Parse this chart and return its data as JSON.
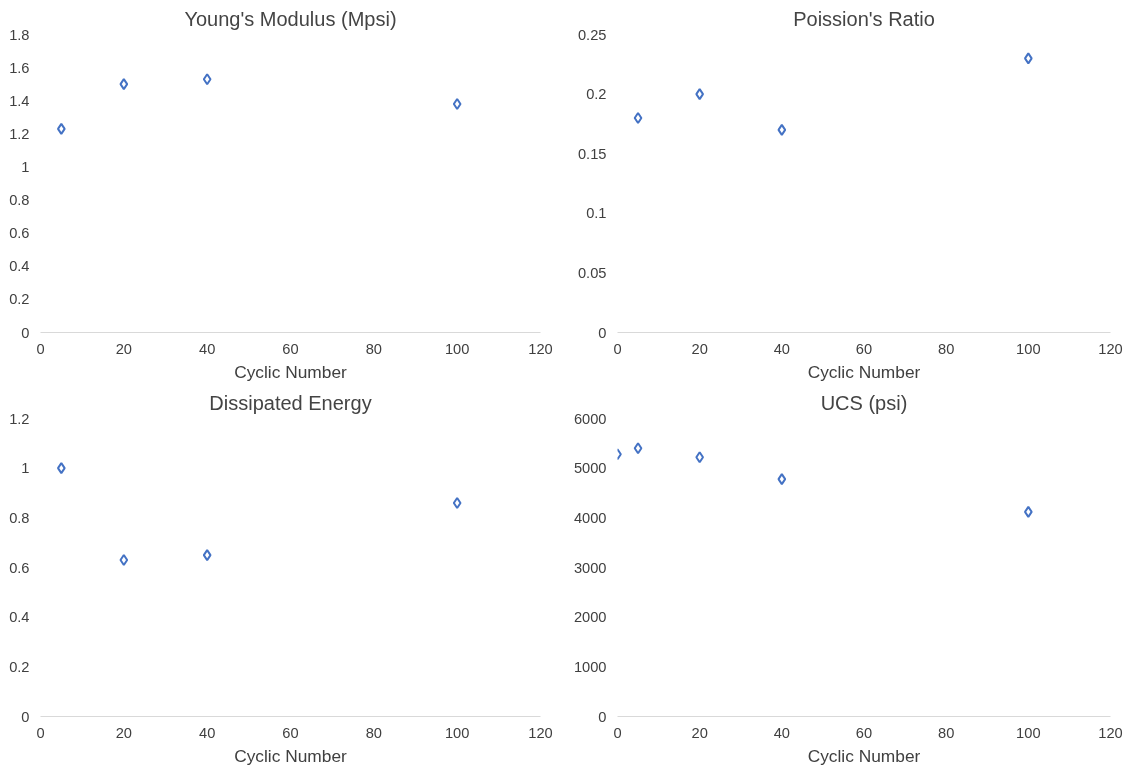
{
  "chart_data": [
    {
      "type": "scatter",
      "title": "Young's Modulus (Mpsi)",
      "xlabel": "Cyclic Number",
      "marker": "diamond",
      "grid": false,
      "series": [
        {
          "color": "#4472c4",
          "x": [
            5,
            20,
            40,
            100
          ],
          "values": [
            1.23,
            1.5,
            1.53,
            1.38
          ]
        }
      ],
      "xlim": [
        0,
        120
      ],
      "xticks": [
        0,
        20,
        40,
        60,
        80,
        100,
        120
      ],
      "ylim": [
        0,
        1.8
      ],
      "yticks": [
        0,
        0.2,
        0.4,
        0.6,
        0.8,
        1,
        1.2,
        1.4,
        1.6,
        1.8
      ]
    },
    {
      "type": "scatter",
      "title": "Poission's Ratio",
      "xlabel": "Cyclic Number",
      "marker": "diamond",
      "grid": false,
      "series": [
        {
          "color": "#4472c4",
          "x": [
            5,
            20,
            40,
            100
          ],
          "values": [
            0.18,
            0.2,
            0.17,
            0.23
          ]
        }
      ],
      "xlim": [
        0,
        120
      ],
      "xticks": [
        0,
        20,
        40,
        60,
        80,
        100,
        120
      ],
      "ylim": [
        0,
        0.25
      ],
      "yticks": [
        0,
        0.05,
        0.1,
        0.15,
        0.2,
        0.25
      ]
    },
    {
      "type": "scatter",
      "title": "Dissipated Energy",
      "xlabel": "Cyclic Number",
      "marker": "diamond",
      "grid": false,
      "series": [
        {
          "color": "#4472c4",
          "x": [
            5,
            20,
            40,
            100
          ],
          "values": [
            1.0,
            0.63,
            0.65,
            0.86
          ]
        }
      ],
      "xlim": [
        0,
        120
      ],
      "xticks": [
        0,
        20,
        40,
        60,
        80,
        100,
        120
      ],
      "ylim": [
        0,
        1.2
      ],
      "yticks": [
        0,
        0.2,
        0.4,
        0.6,
        0.8,
        1,
        1.2
      ]
    },
    {
      "type": "scatter",
      "title": "UCS (psi)",
      "xlabel": "Cyclic Number",
      "marker": "diamond",
      "grid": false,
      "series": [
        {
          "color": "#4472c4",
          "x": [
            0,
            5,
            20,
            40,
            100
          ],
          "values": [
            5280,
            5400,
            5220,
            4780,
            4120
          ]
        }
      ],
      "xlim": [
        0,
        120
      ],
      "xticks": [
        0,
        20,
        40,
        60,
        80,
        100,
        120
      ],
      "ylim": [
        0,
        6000
      ],
      "yticks": [
        0,
        1000,
        2000,
        3000,
        4000,
        5000,
        6000
      ]
    }
  ]
}
